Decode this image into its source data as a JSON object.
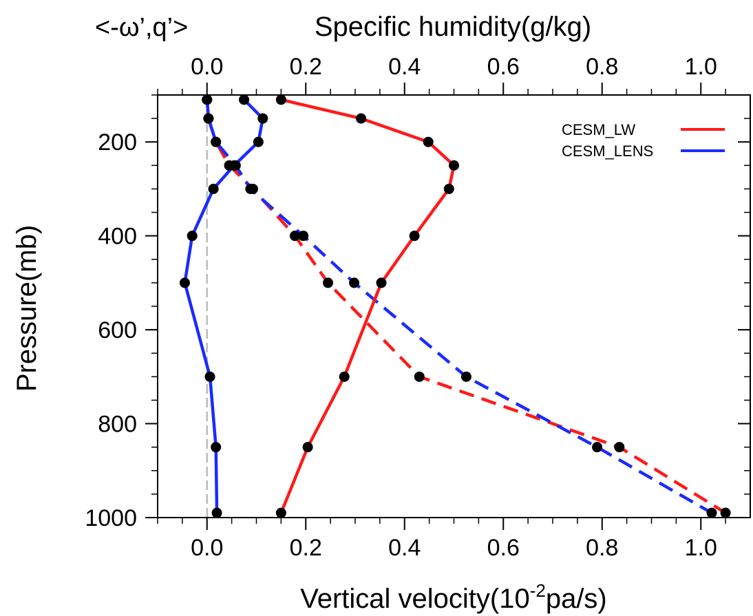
{
  "chart_data": {
    "type": "line",
    "corner_label": "<-ω’,q’>",
    "top_axis_label": "Specific humidity(g/kg)",
    "left_axis_label": "Pressure(mb)",
    "bottom_axis_label_main": "Vertical velocity(10",
    "bottom_axis_label_sup": "-2",
    "bottom_axis_label_tail": "pa/s)",
    "bottom_axis": {
      "range": [
        -0.1,
        1.1
      ],
      "ticks": [
        0.0,
        0.2,
        0.4,
        0.6,
        0.8,
        1.0
      ],
      "tick_labels": [
        "0.0",
        "0.2",
        "0.4",
        "0.6",
        "0.8",
        "1.0"
      ]
    },
    "top_axis": {
      "range": [
        -0.1,
        1.1
      ],
      "ticks": [
        0.0,
        0.2,
        0.4,
        0.6,
        0.8,
        1.0
      ],
      "tick_labels": [
        "0.0",
        "0.2",
        "0.4",
        "0.6",
        "0.8",
        "1.0"
      ]
    },
    "left_axis": {
      "range": [
        100,
        1000
      ],
      "reversed": true,
      "ticks": [
        200,
        400,
        600,
        800,
        1000
      ],
      "tick_labels": [
        "200",
        "400",
        "600",
        "800",
        "1000"
      ]
    },
    "zero_line": {
      "x": 0.0,
      "color": "#bbbbbb"
    },
    "legend": {
      "placement": "top-right",
      "entries": [
        {
          "label": "CESM_LW",
          "color": "#ff1a1a"
        },
        {
          "label": "CESM_LENS",
          "color": "#1a2bff"
        }
      ]
    },
    "pressure_levels": [
      110,
      150,
      200,
      250,
      300,
      400,
      500,
      700,
      850,
      990
    ],
    "series": [
      {
        "legend": "CESM_LW",
        "quantity": "vertical velocity",
        "axis": "bottom",
        "color": "#ff1a1a",
        "style": "dashed",
        "values": [
          0.0,
          0.003,
          0.018,
          0.045,
          0.093,
          0.178,
          0.245,
          0.43,
          0.835,
          1.05
        ]
      },
      {
        "legend": "CESM_LENS",
        "quantity": "vertical velocity",
        "axis": "bottom",
        "color": "#1a2bff",
        "style": "dashed",
        "values": [
          0.0,
          0.003,
          0.018,
          0.058,
          0.088,
          0.195,
          0.298,
          0.525,
          0.79,
          1.022
        ]
      },
      {
        "legend": "CESM_LW",
        "quantity": "specific humidity",
        "axis": "top",
        "color": "#ff1a1a",
        "style": "solid",
        "values": [
          0.15,
          0.312,
          0.448,
          0.5,
          0.49,
          0.42,
          0.353,
          0.278,
          0.204,
          0.15
        ]
      },
      {
        "legend": "CESM_LENS",
        "quantity": "specific humidity",
        "axis": "top",
        "color": "#1a2bff",
        "style": "solid",
        "values": [
          0.075,
          0.113,
          0.104,
          0.055,
          0.013,
          -0.03,
          -0.045,
          0.006,
          0.018,
          0.02
        ]
      }
    ]
  }
}
